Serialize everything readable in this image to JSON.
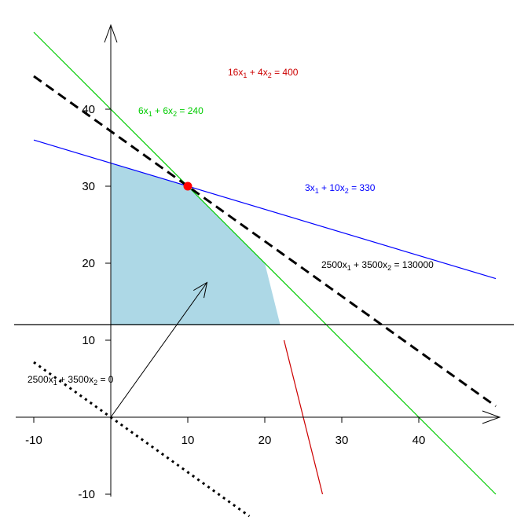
{
  "chart_data": {
    "type": "line",
    "title": "",
    "xlabel": "",
    "ylabel": "",
    "xlim": [
      -10,
      50
    ],
    "ylim": [
      -10,
      50
    ],
    "x_ticks": [
      -10,
      10,
      20,
      30,
      40
    ],
    "y_ticks": [
      -10,
      10,
      20,
      30,
      40
    ],
    "grid": false,
    "feasible_region": {
      "color": "#add8e6",
      "vertices": [
        [
          0,
          12
        ],
        [
          0,
          33
        ],
        [
          10,
          30
        ],
        [
          20,
          20
        ],
        [
          22,
          12
        ]
      ]
    },
    "constraints": [
      {
        "label_parts": [
          "3x",
          "1",
          " + 10x",
          "2",
          " = 330"
        ],
        "coef": [
          3,
          10
        ],
        "rhs": 330,
        "color": "#0000ff",
        "x_range": [
          -10,
          50
        ]
      },
      {
        "label_parts": [
          "6x",
          "1",
          " + 6x",
          "2",
          " = 240"
        ],
        "coef": [
          6,
          6
        ],
        "rhs": 240,
        "color": "#00cc00",
        "x_range": [
          -10,
          50
        ]
      },
      {
        "label_parts": [
          "16x",
          "1",
          " + 4x",
          "2",
          " = 400"
        ],
        "coef": [
          16,
          4
        ],
        "rhs": 400,
        "color": "#cc0000",
        "x_range": [
          22.5,
          27.5
        ]
      }
    ],
    "horizontal_line": {
      "y": 12,
      "color": "#000000"
    },
    "objective_lines": [
      {
        "label_parts": [
          "2500x",
          "1",
          " + 3500x",
          "2",
          " = 130000"
        ],
        "coef": [
          2500,
          3500
        ],
        "rhs": 130000,
        "style": "dashed",
        "x_range": [
          -10,
          50
        ]
      },
      {
        "label_parts": [
          "2500x",
          "1",
          " + 3500x",
          "2",
          " = 0"
        ],
        "coef": [
          2500,
          3500
        ],
        "rhs": 0,
        "style": "dotted",
        "x_range": [
          -10,
          18
        ]
      }
    ],
    "gradient_arrow": {
      "from": [
        0,
        0
      ],
      "to": [
        12.5,
        17.5
      ]
    },
    "optimal_point": {
      "x": 10,
      "y": 30,
      "color": "#ff0000"
    }
  }
}
